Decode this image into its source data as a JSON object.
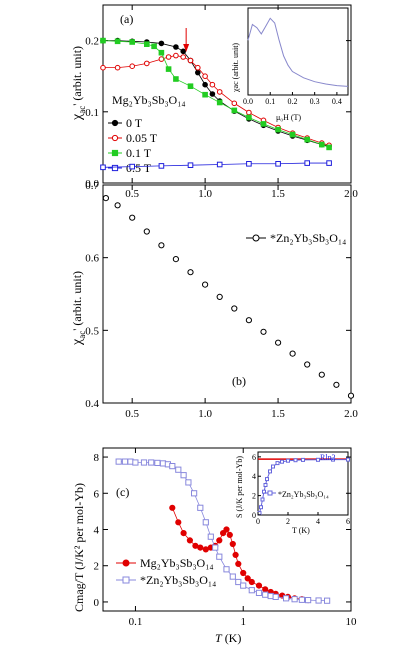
{
  "chart_data": [
    {
      "panel": "(a)",
      "type": "scatter",
      "xlim": [
        0.3,
        2.0
      ],
      "ylim": [
        0.0,
        0.25
      ],
      "x_ticks": [
        "0.5",
        "1.0",
        "1.5",
        "2.0"
      ],
      "y_ticks": [
        "0.0",
        "0.1",
        "0.2"
      ],
      "ylabel": "χac' (arbit. unit)",
      "legend_title": "Mg2Yb3Sb3O14",
      "legend_position": "left",
      "arrow_x": 0.87,
      "series": [
        {
          "name": "0 T",
          "color": "#000000",
          "marker": "circle-filled",
          "x": [
            0.3,
            0.4,
            0.5,
            0.6,
            0.7,
            0.8,
            0.85,
            0.9,
            0.95,
            1.0,
            1.05,
            1.1,
            1.2,
            1.3,
            1.4,
            1.5,
            1.6,
            1.7,
            1.8,
            1.85
          ],
          "y": [
            0.2,
            0.2,
            0.199,
            0.198,
            0.196,
            0.191,
            0.185,
            0.172,
            0.155,
            0.138,
            0.125,
            0.115,
            0.101,
            0.09,
            0.081,
            0.073,
            0.066,
            0.06,
            0.054,
            0.052
          ]
        },
        {
          "name": "0.05 T",
          "color": "#e00000",
          "marker": "circle-open",
          "x": [
            0.3,
            0.4,
            0.5,
            0.6,
            0.7,
            0.75,
            0.8,
            0.85,
            0.9,
            0.95,
            1.0,
            1.05,
            1.1,
            1.2,
            1.3,
            1.4,
            1.5,
            1.6,
            1.7,
            1.8,
            1.85
          ],
          "y": [
            0.162,
            0.162,
            0.164,
            0.168,
            0.174,
            0.177,
            0.179,
            0.177,
            0.172,
            0.162,
            0.15,
            0.138,
            0.128,
            0.112,
            0.099,
            0.088,
            0.078,
            0.07,
            0.063,
            0.056,
            0.053
          ]
        },
        {
          "name": "0.1 T",
          "color": "#22cc22",
          "marker": "square-filled",
          "x": [
            0.3,
            0.4,
            0.5,
            0.6,
            0.65,
            0.7,
            0.75,
            0.8,
            0.9,
            1.0,
            1.1,
            1.2,
            1.3,
            1.4,
            1.5,
            1.6,
            1.7,
            1.8,
            1.85
          ],
          "y": [
            0.2,
            0.199,
            0.198,
            0.195,
            0.192,
            0.183,
            0.16,
            0.146,
            0.136,
            0.124,
            0.113,
            0.102,
            0.092,
            0.083,
            0.075,
            0.068,
            0.061,
            0.054,
            0.05
          ]
        },
        {
          "name": "0.5 T",
          "color": "#2020dd",
          "marker": "square-open",
          "x": [
            0.3,
            0.5,
            0.7,
            0.9,
            1.1,
            1.3,
            1.5,
            1.7,
            1.85
          ],
          "y": [
            0.022,
            0.023,
            0.024,
            0.025,
            0.026,
            0.027,
            0.027,
            0.028,
            0.028
          ]
        }
      ],
      "inset": {
        "type": "line",
        "xlabel": "μ0H (T)",
        "ylabel": "χac (arbit. unit)",
        "xlim": [
          0.0,
          0.45
        ],
        "x_ticks": [
          "0.0",
          "0.1",
          "0.2",
          "0.3",
          "0.4"
        ],
        "color": "#8888cc",
        "x": [
          0.0,
          0.02,
          0.04,
          0.06,
          0.08,
          0.1,
          0.12,
          0.14,
          0.16,
          0.18,
          0.2,
          0.25,
          0.3,
          0.35,
          0.4,
          0.45
        ],
        "y": [
          0.7,
          0.9,
          0.86,
          0.78,
          0.88,
          0.98,
          0.92,
          0.7,
          0.5,
          0.38,
          0.3,
          0.22,
          0.17,
          0.14,
          0.12,
          0.11
        ]
      }
    },
    {
      "panel": "(b)",
      "type": "scatter",
      "xlim": [
        0.3,
        2.0
      ],
      "ylim": [
        0.4,
        0.7
      ],
      "x_ticks": [
        "0.5",
        "1.0",
        "1.5",
        "2.0"
      ],
      "y_ticks": [
        "0.4",
        "0.5",
        "0.6",
        "0.7"
      ],
      "ylabel": "χac' (arbit. unit)",
      "legend_position": "top-right",
      "series": [
        {
          "name": "*Zn2Yb3Sb3O14",
          "color": "#000000",
          "marker": "circle-open",
          "x": [
            0.32,
            0.4,
            0.5,
            0.6,
            0.7,
            0.8,
            0.9,
            1.0,
            1.1,
            1.2,
            1.3,
            1.4,
            1.5,
            1.6,
            1.7,
            1.8,
            1.9,
            2.0
          ],
          "y": [
            0.682,
            0.672,
            0.655,
            0.636,
            0.617,
            0.598,
            0.58,
            0.563,
            0.546,
            0.53,
            0.514,
            0.498,
            0.483,
            0.468,
            0.453,
            0.439,
            0.425,
            0.41
          ]
        }
      ]
    },
    {
      "panel": "(c)",
      "type": "scatter",
      "x_scale": "log",
      "xlim": [
        0.05,
        10
      ],
      "ylim": [
        -0.5,
        8.5
      ],
      "x_ticks": [
        "0.1",
        "1",
        "10"
      ],
      "y_ticks": [
        "0",
        "2",
        "4",
        "6",
        "8"
      ],
      "xlabel": "T (K)",
      "ylabel": "Cmag/T (J/K² per mol-Yb)",
      "legend_position": "bottom-left",
      "series": [
        {
          "name": "Mg2Yb3Sb3O14",
          "color": "#e00000",
          "marker": "circle-filled",
          "x": [
            0.22,
            0.25,
            0.28,
            0.32,
            0.36,
            0.4,
            0.45,
            0.5,
            0.55,
            0.6,
            0.65,
            0.7,
            0.75,
            0.8,
            0.85,
            0.9,
            1.0,
            1.1,
            1.2,
            1.4,
            1.6,
            1.8,
            2.0,
            2.3,
            2.6,
            3.0,
            3.5,
            4.0
          ],
          "y": [
            5.2,
            4.4,
            3.8,
            3.4,
            3.1,
            3.0,
            2.9,
            3.0,
            3.1,
            3.4,
            3.8,
            4.0,
            3.7,
            3.2,
            2.6,
            2.1,
            1.6,
            1.3,
            1.1,
            0.9,
            0.7,
            0.55,
            0.45,
            0.35,
            0.28,
            0.2,
            0.15,
            0.1
          ]
        },
        {
          "name": "*Zn2Yb3Sb3O14",
          "color": "#8888dd",
          "marker": "square-open",
          "x": [
            0.07,
            0.08,
            0.09,
            0.1,
            0.12,
            0.14,
            0.16,
            0.18,
            0.2,
            0.22,
            0.25,
            0.28,
            0.31,
            0.35,
            0.4,
            0.45,
            0.5,
            0.55,
            0.6,
            0.7,
            0.8,
            0.9,
            1.0,
            1.2,
            1.4,
            1.6,
            1.8,
            2.0,
            2.5,
            3.0,
            3.5,
            4.0,
            5.0,
            6.0
          ],
          "y": [
            7.75,
            7.75,
            7.75,
            7.7,
            7.7,
            7.7,
            7.68,
            7.65,
            7.6,
            7.5,
            7.3,
            7.0,
            6.6,
            6.0,
            5.2,
            4.4,
            3.6,
            3.0,
            2.5,
            1.8,
            1.4,
            1.1,
            0.9,
            0.65,
            0.5,
            0.4,
            0.33,
            0.28,
            0.2,
            0.15,
            0.12,
            0.1,
            0.08,
            0.07
          ]
        }
      ],
      "inset": {
        "type": "line",
        "xlabel": "T (K)",
        "ylabel": "S (J/K per mol-Yb)",
        "xlim": [
          0,
          6
        ],
        "ylim": [
          0,
          6.5
        ],
        "x_ticks": [
          "0",
          "2",
          "4",
          "6"
        ],
        "y_ticks": [
          "0",
          "2",
          "4",
          "6"
        ],
        "reference_label": "Rln2",
        "reference_value": 5.76,
        "reference_color": "#e00000",
        "series": [
          {
            "name": "*Zn2Yb3Sb3O14",
            "color": "#6666dd",
            "marker": "square-open",
            "x": [
              0.1,
              0.2,
              0.3,
              0.4,
              0.5,
              0.6,
              0.8,
              1.0,
              1.3,
              1.6,
              2.0,
              2.5,
              3.0,
              4.0,
              5.0,
              6.0
            ],
            "y": [
              0.2,
              0.8,
              1.6,
              2.4,
              3.1,
              3.7,
              4.5,
              5.0,
              5.35,
              5.5,
              5.6,
              5.65,
              5.68,
              5.7,
              5.72,
              5.72
            ]
          }
        ]
      }
    }
  ],
  "panel_a": {
    "label": "(a)",
    "ylabel_main": "χ",
    "ylabel_sub": "ac",
    "ylabel_rest": "' (arbit. unit)",
    "legend_compound": "Mg₂Yb₃Sb₃O₁₄",
    "inset_ylabel": "χac (arbit. unit)",
    "inset_xlabel": "μ₀H (T)"
  },
  "panel_b": {
    "label": "(b)",
    "ylabel_main": "χ",
    "ylabel_sub": "ac",
    "ylabel_rest": "' (arbit. unit)",
    "legend_label": "*Zn₂Yb₃Sb₃O₁₄"
  },
  "panel_c": {
    "label": "(c)",
    "ylabel": "Cmag/T (J/K² per mol-Yb)",
    "xlabel_main": "T",
    "xlabel_rest": " (K)",
    "legend_mg": "Mg₂Yb₃Sb₃O₁₄",
    "legend_zn": "*Zn₂Yb₃Sb₃O₁₄",
    "inset_ylabel": "S (J/K per mol-Yb)",
    "inset_xlabel": "T (K)",
    "inset_legend": "*Zn₂Yb₃Sb₃O₁₄",
    "inset_ref": "Rln2"
  }
}
